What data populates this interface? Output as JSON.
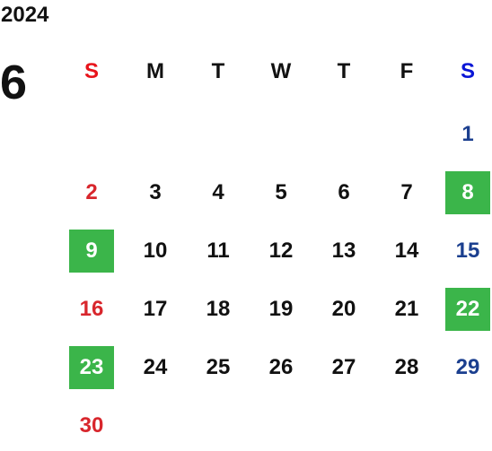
{
  "header": {
    "year": "2024",
    "month": "6"
  },
  "weekdays": [
    "S",
    "M",
    "T",
    "W",
    "T",
    "F",
    "S"
  ],
  "colors": {
    "sunday_header": "#e8141b",
    "saturday_header": "#0a16d6",
    "sunday": "#d8262c",
    "saturday": "#1b3f8f",
    "weekday": "#111111",
    "highlight_bg": "#3bb54a",
    "highlight_text": "#ffffff"
  },
  "weeks": [
    [
      null,
      null,
      null,
      null,
      null,
      null,
      {
        "day": 1
      }
    ],
    [
      {
        "day": 2
      },
      {
        "day": 3
      },
      {
        "day": 4
      },
      {
        "day": 5
      },
      {
        "day": 6
      },
      {
        "day": 7
      },
      {
        "day": 8,
        "highlight": true
      }
    ],
    [
      {
        "day": 9,
        "highlight": true
      },
      {
        "day": 10
      },
      {
        "day": 11
      },
      {
        "day": 12
      },
      {
        "day": 13
      },
      {
        "day": 14
      },
      {
        "day": 15
      }
    ],
    [
      {
        "day": 16
      },
      {
        "day": 17
      },
      {
        "day": 18
      },
      {
        "day": 19
      },
      {
        "day": 20
      },
      {
        "day": 21
      },
      {
        "day": 22,
        "highlight": true
      }
    ],
    [
      {
        "day": 23,
        "highlight": true
      },
      {
        "day": 24
      },
      {
        "day": 25
      },
      {
        "day": 26
      },
      {
        "day": 27
      },
      {
        "day": 28
      },
      {
        "day": 29
      }
    ],
    [
      {
        "day": 30
      },
      null,
      null,
      null,
      null,
      null,
      null
    ]
  ]
}
